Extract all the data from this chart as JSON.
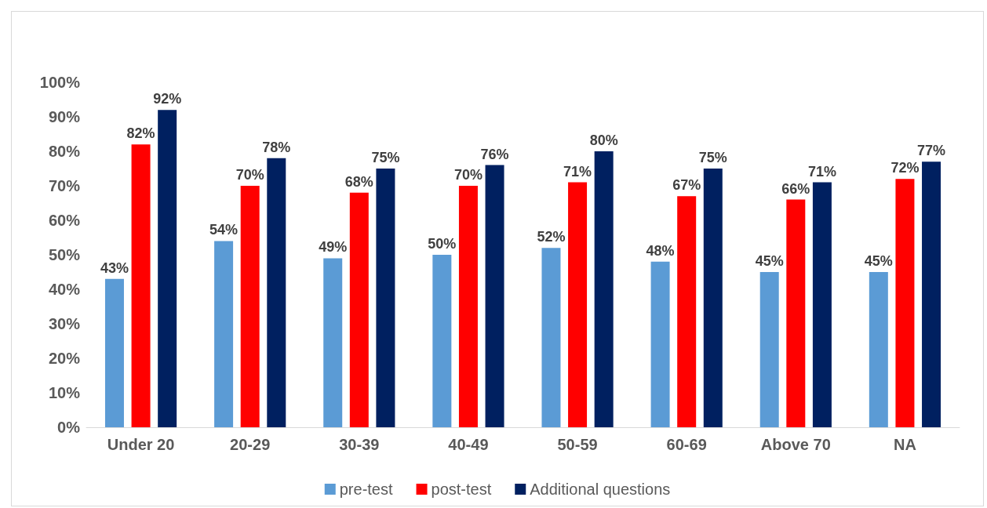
{
  "chart_data": {
    "type": "bar",
    "categories": [
      "Under 20",
      "20-29",
      "30-39",
      "40-49",
      "50-59",
      "60-69",
      "Above 70",
      "NA"
    ],
    "series": [
      {
        "name": "pre-test",
        "color": "#5b9bd5",
        "values": [
          43,
          54,
          49,
          50,
          52,
          48,
          45,
          45
        ],
        "value_labels": [
          "43%",
          "54%",
          "49%",
          "50%",
          "52%",
          "48%",
          "45%",
          "45%"
        ]
      },
      {
        "name": "post-test",
        "color": "#ff0000",
        "values": [
          82,
          70,
          68,
          70,
          71,
          67,
          66,
          72
        ],
        "value_labels": [
          "82%",
          "70%",
          "68%",
          "70%",
          "71%",
          "67%",
          "66%",
          "72%"
        ]
      },
      {
        "name": "Additional questions",
        "color": "#002060",
        "values": [
          92,
          78,
          75,
          76,
          80,
          75,
          71,
          77
        ],
        "value_labels": [
          "92%",
          "78%",
          "75%",
          "76%",
          "80%",
          "75%",
          "71%",
          "77%"
        ]
      }
    ],
    "ylim": [
      0,
      100
    ],
    "yticks": [
      {
        "value": 0,
        "label": "0%"
      },
      {
        "value": 10,
        "label": "10%"
      },
      {
        "value": 20,
        "label": "20%"
      },
      {
        "value": 30,
        "label": "30%"
      },
      {
        "value": 40,
        "label": "40%"
      },
      {
        "value": 50,
        "label": "50%"
      },
      {
        "value": 60,
        "label": "60%"
      },
      {
        "value": 70,
        "label": "70%"
      },
      {
        "value": 80,
        "label": "80%"
      },
      {
        "value": 90,
        "label": "90%"
      },
      {
        "value": 100,
        "label": "100%"
      }
    ],
    "grid": false,
    "legend": "bottom"
  }
}
